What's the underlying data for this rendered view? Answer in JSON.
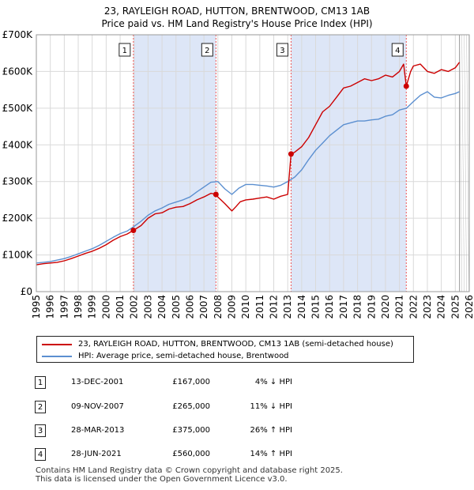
{
  "title_line1": "23, RAYLEIGH ROAD, HUTTON, BRENTWOOD, CM13 1AB",
  "title_line2": "Price paid vs. HM Land Registry's House Price Index (HPI)",
  "chart_data": {
    "type": "line",
    "title": "23, RAYLEIGH ROAD, HUTTON, BRENTWOOD, CM13 1AB — Price paid vs. HM Land Registry's House Price Index (HPI)",
    "xlim": [
      1995,
      2026
    ],
    "ylim": [
      0,
      700000
    ],
    "x_ticks": [
      "1995",
      "1996",
      "1997",
      "1998",
      "1999",
      "2000",
      "2001",
      "2002",
      "2003",
      "2004",
      "2005",
      "2006",
      "2007",
      "2008",
      "2009",
      "2010",
      "2011",
      "2012",
      "2013",
      "2014",
      "2015",
      "2016",
      "2017",
      "2018",
      "2019",
      "2020",
      "2021",
      "2022",
      "2023",
      "2024",
      "2025",
      "2026"
    ],
    "y_ticks": [
      {
        "value": 0,
        "label": "£0"
      },
      {
        "value": 100000,
        "label": "£100K"
      },
      {
        "value": 200000,
        "label": "£200K"
      },
      {
        "value": 300000,
        "label": "£300K"
      },
      {
        "value": 400000,
        "label": "£400K"
      },
      {
        "value": 500000,
        "label": "£500K"
      },
      {
        "value": 600000,
        "label": "£600K"
      },
      {
        "value": 700000,
        "label": "£700K"
      }
    ],
    "grid": true,
    "forecast_start": 2025.3,
    "colors": {
      "property": "#cc0000",
      "hpi": "#5b8fd0",
      "shade": "#dde6f7",
      "event_line": "#ee5555",
      "box_border": "#222222"
    },
    "series": [
      {
        "name": "23, RAYLEIGH ROAD, HUTTON, BRENTWOOD, CM13 1AB (semi-detached house)",
        "color": "#cc0000",
        "x": [
          1995.0,
          1995.5,
          1996.0,
          1996.5,
          1997.0,
          1997.5,
          1998.0,
          1998.5,
          1999.0,
          1999.5,
          2000.0,
          2000.5,
          2001.0,
          2001.5,
          2001.95,
          2002.5,
          2003.0,
          2003.5,
          2004.0,
          2004.5,
          2005.0,
          2005.5,
          2006.0,
          2006.5,
          2007.0,
          2007.5,
          2007.86,
          2008.0,
          2008.5,
          2009.0,
          2009.3,
          2009.6,
          2010.0,
          2010.5,
          2011.0,
          2011.5,
          2012.0,
          2012.5,
          2013.0,
          2013.24,
          2013.5,
          2014.0,
          2014.5,
          2015.0,
          2015.5,
          2016.0,
          2016.5,
          2017.0,
          2017.5,
          2018.0,
          2018.5,
          2019.0,
          2019.5,
          2020.0,
          2020.5,
          2021.0,
          2021.3,
          2021.49,
          2021.8,
          2022.0,
          2022.5,
          2023.0,
          2023.5,
          2024.0,
          2024.5,
          2025.0,
          2025.3
        ],
        "values": [
          73000,
          76000,
          78000,
          80000,
          84000,
          90000,
          97000,
          104000,
          110000,
          118000,
          128000,
          140000,
          150000,
          157000,
          167000,
          180000,
          200000,
          212000,
          215000,
          225000,
          230000,
          232000,
          240000,
          250000,
          258000,
          268000,
          265000,
          258000,
          240000,
          220000,
          232000,
          245000,
          250000,
          252000,
          255000,
          258000,
          252000,
          260000,
          265000,
          375000,
          380000,
          395000,
          420000,
          455000,
          490000,
          505000,
          530000,
          555000,
          560000,
          570000,
          580000,
          575000,
          580000,
          590000,
          585000,
          600000,
          620000,
          560000,
          600000,
          615000,
          620000,
          600000,
          595000,
          605000,
          600000,
          610000,
          625000
        ]
      },
      {
        "name": "HPI: Average price, semi-detached house, Brentwood",
        "color": "#5b8fd0",
        "x": [
          1995.0,
          1995.5,
          1996.0,
          1996.5,
          1997.0,
          1997.5,
          1998.0,
          1998.5,
          1999.0,
          1999.5,
          2000.0,
          2000.5,
          2001.0,
          2001.5,
          2002.0,
          2002.5,
          2003.0,
          2003.5,
          2004.0,
          2004.5,
          2005.0,
          2005.5,
          2006.0,
          2006.5,
          2007.0,
          2007.5,
          2008.0,
          2008.5,
          2009.0,
          2009.5,
          2010.0,
          2010.5,
          2011.0,
          2011.5,
          2012.0,
          2012.5,
          2013.0,
          2013.5,
          2014.0,
          2014.5,
          2015.0,
          2015.5,
          2016.0,
          2016.5,
          2017.0,
          2017.5,
          2018.0,
          2018.5,
          2019.0,
          2019.5,
          2020.0,
          2020.5,
          2021.0,
          2021.5,
          2022.0,
          2022.5,
          2023.0,
          2023.5,
          2024.0,
          2024.5,
          2025.0,
          2025.3
        ],
        "values": [
          78000,
          80000,
          82000,
          86000,
          90000,
          96000,
          103000,
          110000,
          117000,
          126000,
          137000,
          148000,
          158000,
          165000,
          178000,
          192000,
          208000,
          220000,
          228000,
          238000,
          244000,
          250000,
          258000,
          272000,
          285000,
          298000,
          300000,
          280000,
          265000,
          282000,
          292000,
          292000,
          290000,
          288000,
          285000,
          290000,
          300000,
          312000,
          332000,
          360000,
          385000,
          405000,
          425000,
          440000,
          455000,
          460000,
          465000,
          465000,
          468000,
          470000,
          478000,
          482000,
          495000,
          500000,
          518000,
          535000,
          545000,
          530000,
          528000,
          535000,
          540000,
          545000
        ]
      }
    ],
    "events": [
      {
        "num": "1",
        "x": 2001.95,
        "value": 167000
      },
      {
        "num": "2",
        "x": 2007.86,
        "value": 265000
      },
      {
        "num": "3",
        "x": 2013.24,
        "value": 375000
      },
      {
        "num": "4",
        "x": 2021.49,
        "value": 560000
      }
    ]
  },
  "legend": {
    "property_label": "23, RAYLEIGH ROAD, HUTTON, BRENTWOOD, CM13 1AB (semi-detached house)",
    "hpi_label": "HPI: Average price, semi-detached house, Brentwood"
  },
  "events_table": [
    {
      "num": "1",
      "date": "13-DEC-2001",
      "price": "£167,000",
      "hpi": "4% ↓ HPI"
    },
    {
      "num": "2",
      "date": "09-NOV-2007",
      "price": "£265,000",
      "hpi": "11% ↓ HPI"
    },
    {
      "num": "3",
      "date": "28-MAR-2013",
      "price": "£375,000",
      "hpi": "26% ↑ HPI"
    },
    {
      "num": "4",
      "date": "28-JUN-2021",
      "price": "£560,000",
      "hpi": "14% ↑ HPI"
    }
  ],
  "footer": {
    "line1": "Contains HM Land Registry data © Crown copyright and database right 2025.",
    "line2": "This data is licensed under the Open Government Licence v3.0."
  }
}
